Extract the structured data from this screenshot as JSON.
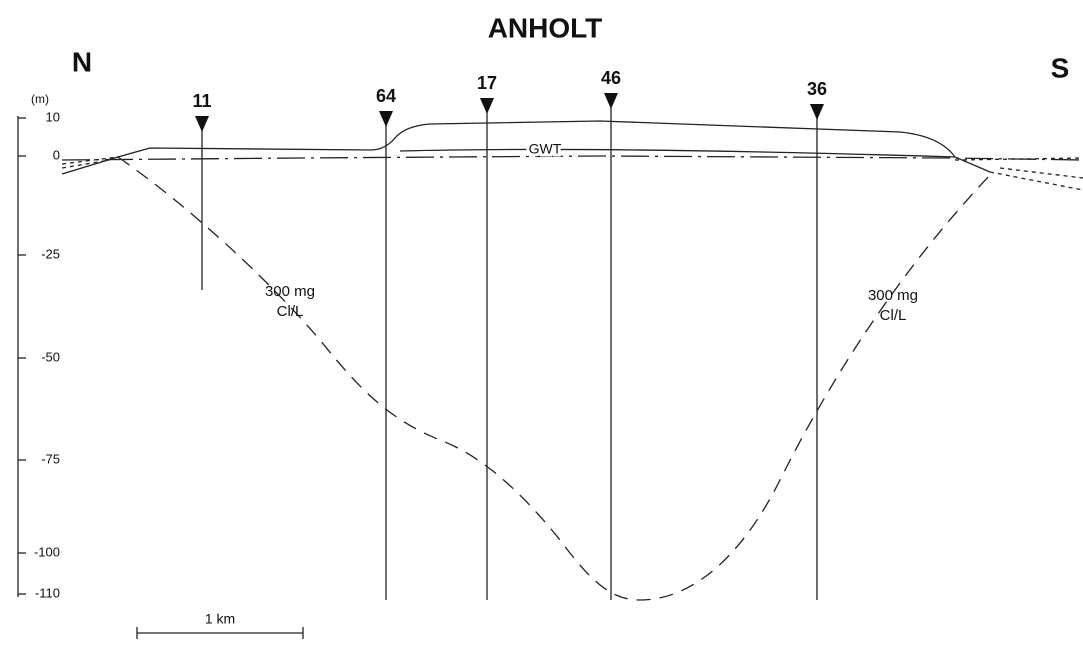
{
  "title": "ANHOLT",
  "north": "N",
  "south": "S",
  "axis": {
    "unit": "(m)",
    "ticks": [
      "10",
      "0",
      "-25",
      "-50",
      "-75",
      "-100",
      "-110"
    ]
  },
  "wells": [
    "11",
    "64",
    "17",
    "46",
    "36"
  ],
  "gwt": "GWT",
  "annotations": [
    {
      "lines": [
        "300 mg",
        "Cl/L"
      ]
    },
    {
      "lines": [
        "300 mg",
        "Cl/L"
      ]
    }
  ],
  "scale": "1 km"
}
